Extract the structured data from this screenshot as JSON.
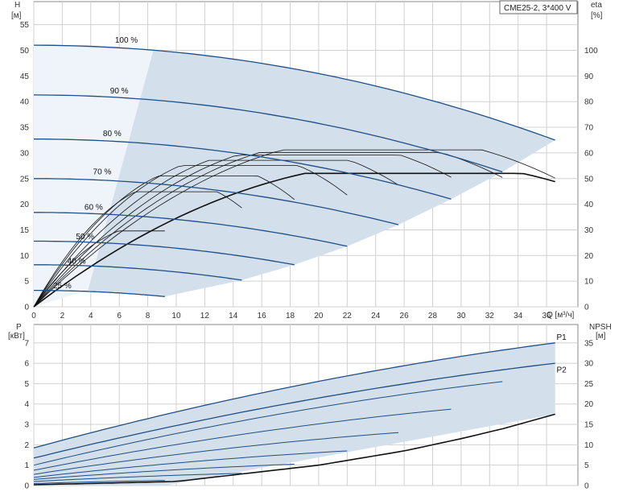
{
  "header": {
    "pump_model": "CME25-2, 3*400 V"
  },
  "chart_data": [
    {
      "id": "head-curve",
      "type": "line",
      "xlabel": "Q [м³/ч]",
      "ylabel_left_name": "H",
      "ylabel_left_unit": "[м]",
      "ylabel_right_name": "eta",
      "ylabel_right_unit": "[%]",
      "xlim": [
        0,
        38.2
      ],
      "ylim": [
        0,
        59.5
      ],
      "ylim_right": [
        0,
        119
      ],
      "x_ticks": [
        0,
        2,
        4,
        6,
        8,
        10,
        12,
        14,
        16,
        18,
        20,
        22,
        24,
        26,
        28,
        30,
        32,
        34,
        36
      ],
      "y_ticks": [
        0,
        5,
        10,
        15,
        20,
        25,
        30,
        35,
        40,
        45,
        50,
        55
      ],
      "y_right_ticks": [
        0,
        10,
        20,
        30,
        40,
        50,
        60,
        70,
        80,
        90,
        100
      ],
      "grid": true,
      "series": [
        {
          "name": "100 %",
          "q_max": 36.6,
          "h_shutoff": 51,
          "h_end": 32.5,
          "label_pos": [
            6.5,
            51.5
          ],
          "color": "#1e4f86"
        },
        {
          "name": "90 %",
          "q_max": 32.9,
          "h_shutoff": 41.3,
          "h_end": 26.3,
          "label_pos": [
            6,
            41.6
          ],
          "color": "#1e4f86"
        },
        {
          "name": "80 %",
          "q_max": 29.3,
          "h_shutoff": 32.7,
          "h_end": 21,
          "label_pos": [
            5.5,
            33.3
          ],
          "color": "#1e4f86"
        },
        {
          "name": "70 %",
          "q_max": 25.6,
          "h_shutoff": 25,
          "h_end": 16,
          "label_pos": [
            4.8,
            25.8
          ],
          "color": "#1e4f86"
        },
        {
          "name": "60 %",
          "q_max": 22,
          "h_shutoff": 18.4,
          "h_end": 11.8,
          "label_pos": [
            4.2,
            18.9
          ],
          "color": "#1e4f86"
        },
        {
          "name": "50 %",
          "q_max": 18.3,
          "h_shutoff": 12.8,
          "h_end": 8.2,
          "label_pos": [
            3.6,
            13.2
          ],
          "color": "#1e4f86"
        },
        {
          "name": "40 %",
          "q_max": 14.6,
          "h_shutoff": 8.2,
          "h_end": 5.2,
          "label_pos": [
            3,
            8.4
          ],
          "color": "#1e4f86"
        },
        {
          "name": "25 %",
          "q_max": 9.2,
          "h_shutoff": 3.2,
          "h_end": 2,
          "label_pos": [
            2,
            3.6
          ],
          "color": "#1e4f86"
        }
      ],
      "efficiency_curves": [
        {
          "q_max": 36.6,
          "eta_max": 60,
          "q_best": 22
        },
        {
          "q_max": 32.9,
          "eta_max": 59,
          "q_best": 20
        },
        {
          "q_max": 29.3,
          "eta_max": 58,
          "q_best": 18
        },
        {
          "q_max": 25.6,
          "eta_max": 56,
          "q_best": 15.5
        },
        {
          "q_max": 22,
          "eta_max": 54,
          "q_best": 13
        },
        {
          "q_max": 18.3,
          "eta_max": 50,
          "q_best": 11
        },
        {
          "q_max": 14.6,
          "eta_max": 44,
          "q_best": 9
        },
        {
          "q_max": 9.2,
          "eta_max": 29,
          "q_best": 7.5
        },
        {
          "q_max": 36.6,
          "eta_max": 51,
          "q_best": 24
        }
      ]
    },
    {
      "id": "power-curve",
      "type": "line",
      "xlabel": "",
      "ylabel_left_name": "P",
      "ylabel_left_unit": "[кВт]",
      "ylabel_right_name": "NPSH",
      "ylabel_right_unit": "[м]",
      "xlim": [
        0,
        38.2
      ],
      "ylim": [
        0,
        7.9
      ],
      "ylim_right": [
        0,
        39.5
      ],
      "y_ticks": [
        0,
        1,
        2,
        3,
        4,
        5,
        6,
        7
      ],
      "y_right_ticks": [
        0,
        5,
        10,
        15,
        20,
        25,
        30,
        35
      ],
      "grid": true,
      "series": [
        {
          "name": "P1",
          "q_max": 36.6,
          "p_start": 1.85,
          "p_end": 7.0,
          "label_pos": [
            36.7,
            7.15
          ],
          "color": "#1e4f86"
        },
        {
          "name": "P2",
          "q_max": 36.6,
          "p_start": 1.35,
          "p_end": 6.0,
          "label_pos": [
            36.7,
            5.55
          ],
          "color": "#1e4f86"
        }
      ],
      "power_sub_curves": [
        {
          "q_max": 32.9,
          "p_start": 1.0,
          "p_end": 5.1
        },
        {
          "q_max": 29.3,
          "p_start": 0.75,
          "p_end": 3.75
        },
        {
          "q_max": 25.6,
          "p_start": 0.55,
          "p_end": 2.6
        },
        {
          "q_max": 22,
          "p_start": 0.4,
          "p_end": 1.7
        },
        {
          "q_max": 18.3,
          "p_start": 0.3,
          "p_end": 1.05
        },
        {
          "q_max": 14.6,
          "p_start": 0.2,
          "p_end": 0.6
        },
        {
          "q_max": 9.2,
          "p_start": 0.1,
          "p_end": 0.25
        }
      ],
      "npsh_curve": {
        "x": [
          0,
          10,
          20,
          26,
          30,
          33,
          36.6
        ],
        "y": [
          0.2,
          1.0,
          5.0,
          8.5,
          11.5,
          14.0,
          17.5
        ]
      }
    }
  ]
}
